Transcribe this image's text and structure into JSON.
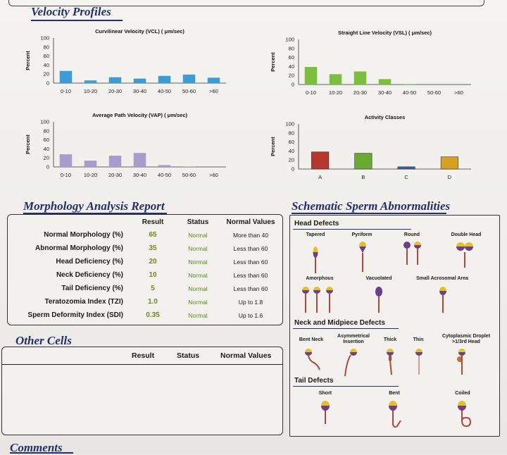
{
  "sections": {
    "velocity": "Velocity Profiles",
    "morphology": "Morphology Analysis Report",
    "schematic": "Schematic Sperm Abnormalities",
    "other_cells": "Other Cells",
    "comments": "Comments"
  },
  "chart_data": [
    {
      "type": "bar",
      "title": "Curvilinear Velocity (VCL) ( μm/sec)",
      "ylabel": "Percent",
      "ylim": [
        0,
        100
      ],
      "yticks": [
        "100",
        "80",
        "60",
        "40",
        "20",
        "0"
      ],
      "categories": [
        "0-10",
        "10-20",
        "20-30",
        "30-40",
        "40-50",
        "50-60",
        ">60"
      ],
      "values": [
        27,
        6,
        13,
        10,
        16,
        19,
        12
      ],
      "color": "#3d9bd6"
    },
    {
      "type": "bar",
      "title": "Straight Line Velocity (VSL) ( μm/sec)",
      "ylabel": "Percent",
      "ylim": [
        0,
        100
      ],
      "yticks": [
        "100",
        "80",
        "60",
        "40",
        "20",
        "0"
      ],
      "categories": [
        "0-10",
        "10-20",
        "20-30",
        "30-40",
        "40-50",
        "50-60",
        ">60"
      ],
      "values": [
        39,
        23,
        29,
        12,
        1,
        0,
        0
      ],
      "color": "#7cbf3a"
    },
    {
      "type": "bar",
      "title": "Average Path Velocity (VAP) ( μm/sec)",
      "ylabel": "Percent",
      "ylim": [
        0,
        100
      ],
      "yticks": [
        "100",
        "80",
        "60",
        "40",
        "20",
        "0"
      ],
      "categories": [
        "0-10",
        "10-20",
        "20-30",
        "30-40",
        "40-50",
        "50-60",
        ">60"
      ],
      "values": [
        28,
        14,
        25,
        31,
        4,
        1,
        0
      ],
      "color": "#a79ccd"
    },
    {
      "type": "bar",
      "title": "Activity Classes",
      "ylabel": "Percent",
      "ylim": [
        0,
        100
      ],
      "yticks": [
        "100",
        "80",
        "60",
        "40",
        "20",
        "0"
      ],
      "categories": [
        "A",
        "B",
        "C",
        "D"
      ],
      "values": [
        38,
        35,
        5,
        27
      ],
      "colors": [
        "#b8362e",
        "#6aaa30",
        "#3a5fa0",
        "#d5a11e"
      ]
    }
  ],
  "morphology": {
    "headers": [
      "Result",
      "Status",
      "Normal Values"
    ],
    "rows": [
      {
        "label": "Normal Morphology (%)",
        "result": "65",
        "status": "Normal",
        "normal": "More than  40"
      },
      {
        "label": "Abnormal Morphology (%)",
        "result": "35",
        "status": "Normal",
        "normal": "Less than  60"
      },
      {
        "label": "Head Deficiency (%)",
        "result": "20",
        "status": "Normal",
        "normal": "Less than  60"
      },
      {
        "label": "Neck Deficiency (%)",
        "result": "10",
        "status": "Normal",
        "normal": "Less than  60"
      },
      {
        "label": "Tail Deficiency (%)",
        "result": "5",
        "status": "Normal",
        "normal": "Less than  60"
      },
      {
        "label": "Teratozomia Index (TZI)",
        "result": "1.0",
        "status": "Normal",
        "normal": "Up to 1.8"
      },
      {
        "label": "Sperm Deformity Index (SDI)",
        "result": "0.35",
        "status": "Normal",
        "normal": "Up to 1.6"
      }
    ]
  },
  "other_cells": {
    "headers": [
      "Result",
      "Status",
      "Normal Values"
    ]
  },
  "schematic": {
    "head_defects": {
      "title": "Head Defects",
      "labels": [
        "Tapered",
        "Pyriform",
        "Round",
        "Double Head",
        "Amorphous",
        "Vacuolated",
        "Small Acrosomal Area"
      ]
    },
    "neck_defects": {
      "title": "Neck and Midpiece Defects",
      "labels": [
        "Bent Neck",
        "Asymmetrical Insertion",
        "Thick",
        "Thin",
        "Cytoplasmic Droplet >1/3rd Head"
      ]
    },
    "tail_defects": {
      "title": "Tail Defects",
      "labels": [
        "Short",
        "Bent",
        "Coiled"
      ]
    }
  },
  "colors": {
    "heading": "#23306b",
    "status_green": "#5f8a1c",
    "result_green": "#6d8a1a",
    "sperm_yellow": "#e3c21f",
    "sperm_purple": "#6b3e8e",
    "sperm_tail": "#b5473a"
  }
}
